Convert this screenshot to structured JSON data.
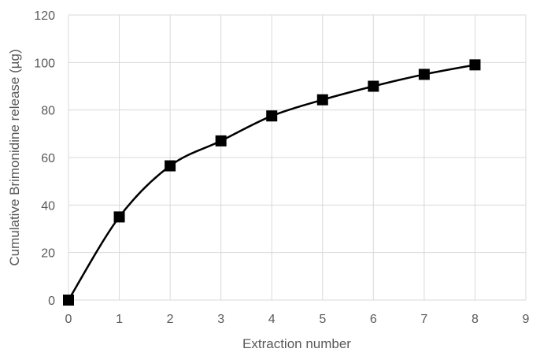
{
  "chart_data": {
    "type": "line",
    "title": "",
    "xlabel": "Extraction number",
    "ylabel": "Cumulative  Brimonidine release (µg)",
    "xlim": [
      0,
      9
    ],
    "ylim": [
      0,
      120
    ],
    "xticks": [
      0,
      1,
      2,
      3,
      4,
      5,
      6,
      7,
      8,
      9
    ],
    "yticks": [
      0,
      20,
      40,
      60,
      80,
      100,
      120
    ],
    "grid": true,
    "legend": "none",
    "smooth": true,
    "marker": "square",
    "series": [
      {
        "x": [
          0,
          1,
          2,
          3,
          4,
          5,
          6,
          7,
          8
        ],
        "values": [
          0,
          35,
          56.5,
          67,
          77.5,
          84.3,
          90,
          95,
          99
        ],
        "color": "#000000"
      }
    ]
  }
}
